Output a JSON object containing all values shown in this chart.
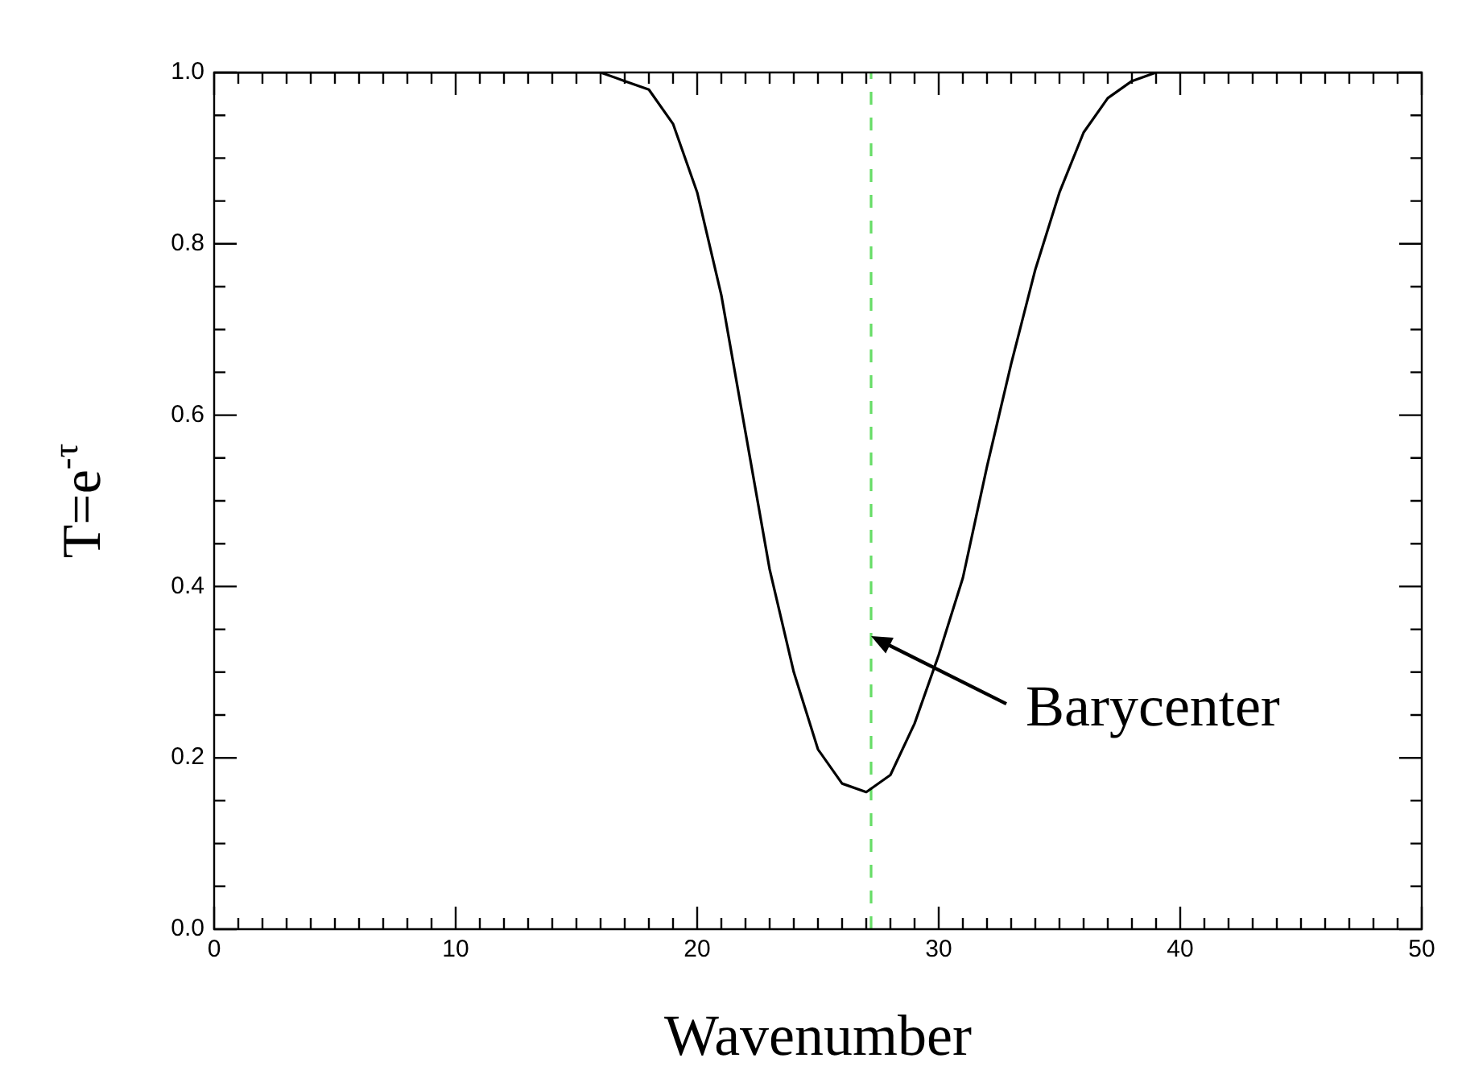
{
  "chart_data": {
    "type": "line",
    "xlabel": "Wavenumber",
    "ylabel": "T=e$^{-τ}$",
    "x": [
      0,
      16,
      17,
      18,
      19,
      20,
      21,
      22,
      23,
      24,
      25,
      26,
      27,
      28,
      29,
      30,
      31,
      32,
      33,
      34,
      35,
      36,
      37,
      38,
      39,
      40,
      50
    ],
    "series": [
      {
        "color": "#000000",
        "values": [
          1.0,
          1.0,
          0.99,
          0.98,
          0.94,
          0.86,
          0.74,
          0.58,
          0.42,
          0.3,
          0.21,
          0.17,
          0.16,
          0.18,
          0.24,
          0.32,
          0.41,
          0.54,
          0.66,
          0.77,
          0.86,
          0.93,
          0.97,
          0.99,
          1.0,
          1.0,
          1.0
        ]
      }
    ],
    "marker": "none",
    "line_style": "solid",
    "xlim": [
      0,
      50
    ],
    "ylim": [
      0,
      1
    ],
    "xticks": [
      0,
      {
        "value": 1,
        "label": null
      },
      {
        "value": 2,
        "label": null
      },
      {
        "value": 3,
        "label": null
      },
      {
        "value": 4,
        "label": null
      },
      {
        "value": 5,
        "label": null
      },
      {
        "value": 6,
        "label": null
      },
      {
        "value": 7,
        "label": null
      },
      {
        "value": 8,
        "label": null
      },
      {
        "value": 9,
        "label": null
      },
      10,
      {
        "value": 11,
        "label": null
      },
      {
        "value": 12,
        "label": null
      },
      {
        "value": 13,
        "label": null
      },
      {
        "value": 14,
        "label": null
      },
      {
        "value": 15,
        "label": null
      },
      {
        "value": 16,
        "label": null
      },
      {
        "value": 17,
        "label": null
      },
      {
        "value": 18,
        "label": null
      },
      {
        "value": 19,
        "label": null
      },
      20,
      {
        "value": 21,
        "label": null
      },
      {
        "value": 22,
        "label": null
      },
      {
        "value": 23,
        "label": null
      },
      {
        "value": 24,
        "label": null
      },
      {
        "value": 25,
        "label": null
      },
      {
        "value": 26,
        "label": null
      },
      {
        "value": 27,
        "label": null
      },
      {
        "value": 28,
        "label": null
      },
      {
        "value": 29,
        "label": null
      },
      30,
      {
        "value": 31,
        "label": null
      },
      {
        "value": 32,
        "label": null
      },
      {
        "value": 33,
        "label": null
      },
      {
        "value": 34,
        "label": null
      },
      {
        "value": 35,
        "label": null
      },
      {
        "value": 36,
        "label": null
      },
      {
        "value": 37,
        "label": null
      },
      {
        "value": 38,
        "label": null
      },
      {
        "value": 39,
        "label": null
      },
      40,
      {
        "value": 41,
        "label": null
      },
      {
        "value": 42,
        "label": null
      },
      {
        "value": 43,
        "label": null
      },
      {
        "value": 44,
        "label": null
      },
      {
        "value": 45,
        "label": null
      },
      {
        "value": 46,
        "label": null
      },
      {
        "value": 47,
        "label": null
      },
      {
        "value": 48,
        "label": null
      },
      {
        "value": 49,
        "label": null
      },
      50
    ],
    "yticks": [
      {
        "value": 0,
        "label": "0.0"
      },
      {
        "value": 0.05,
        "label": null
      },
      {
        "value": 0.1,
        "label": null
      },
      {
        "value": 0.15,
        "label": null
      },
      0.2,
      {
        "value": 0.25,
        "label": null
      },
      {
        "value": 0.3,
        "label": null
      },
      {
        "value": 0.35,
        "label": null
      },
      0.4,
      {
        "value": 0.45,
        "label": null
      },
      {
        "value": 0.5,
        "label": null
      },
      {
        "value": 0.55,
        "label": null
      },
      0.6,
      {
        "value": 0.65,
        "label": null
      },
      {
        "value": 0.7,
        "label": null
      },
      {
        "value": 0.75,
        "label": null
      },
      0.8,
      {
        "value": 0.85,
        "label": null
      },
      {
        "value": 0.9,
        "label": null
      },
      {
        "value": 0.95,
        "label": null
      },
      {
        "value": 1,
        "label": "1.0"
      }
    ],
    "ref_lines": [
      {
        "axis": "x",
        "value": 27.2,
        "color": "#66dd66",
        "line_style": "dashed"
      }
    ],
    "annotations": [
      {
        "text": "Barycenter",
        "x": 27.2,
        "y": 0.342
      }
    ],
    "legend": false
  }
}
